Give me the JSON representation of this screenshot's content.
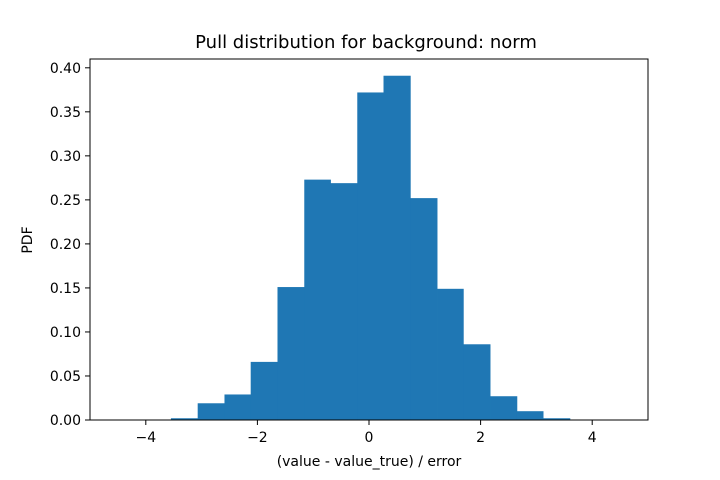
{
  "chart_data": {
    "type": "bar",
    "title": "Pull distribution for background: norm",
    "xlabel": "(value - value_true) / error",
    "ylabel": "PDF",
    "xlim": [
      -5.0,
      5.0
    ],
    "ylim": [
      0.0,
      0.41
    ],
    "xticks": [
      -4,
      -2,
      0,
      2,
      4
    ],
    "xtick_labels": [
      "−4",
      "−2",
      "0",
      "2",
      "4"
    ],
    "yticks": [
      0.0,
      0.05,
      0.1,
      0.15,
      0.2,
      0.25,
      0.3,
      0.35,
      0.4
    ],
    "ytick_labels": [
      "0.00",
      "0.05",
      "0.10",
      "0.15",
      "0.20",
      "0.25",
      "0.30",
      "0.35",
      "0.40"
    ],
    "bar_color": "#1f77b4",
    "grid": false,
    "bins": [
      {
        "x0": -4.5,
        "x1": -4.02,
        "value": 0.0
      },
      {
        "x0": -4.02,
        "x1": -3.55,
        "value": 0.0
      },
      {
        "x0": -3.55,
        "x1": -3.07,
        "value": 0.002
      },
      {
        "x0": -3.07,
        "x1": -2.59,
        "value": 0.019
      },
      {
        "x0": -2.59,
        "x1": -2.12,
        "value": 0.029
      },
      {
        "x0": -2.12,
        "x1": -1.64,
        "value": 0.066
      },
      {
        "x0": -1.64,
        "x1": -1.16,
        "value": 0.151
      },
      {
        "x0": -1.16,
        "x1": -0.69,
        "value": 0.273
      },
      {
        "x0": -0.69,
        "x1": -0.21,
        "value": 0.269
      },
      {
        "x0": -0.21,
        "x1": 0.26,
        "value": 0.372
      },
      {
        "x0": 0.26,
        "x1": 0.74,
        "value": 0.391
      },
      {
        "x0": 0.74,
        "x1": 1.22,
        "value": 0.252
      },
      {
        "x0": 1.22,
        "x1": 1.69,
        "value": 0.149
      },
      {
        "x0": 1.69,
        "x1": 2.17,
        "value": 0.086
      },
      {
        "x0": 2.17,
        "x1": 2.65,
        "value": 0.027
      },
      {
        "x0": 2.65,
        "x1": 3.12,
        "value": 0.01
      },
      {
        "x0": 3.12,
        "x1": 3.6,
        "value": 0.002
      },
      {
        "x0": 3.6,
        "x1": 4.08,
        "value": 0.0
      },
      {
        "x0": 4.08,
        "x1": 4.55,
        "value": 0.0
      }
    ]
  }
}
